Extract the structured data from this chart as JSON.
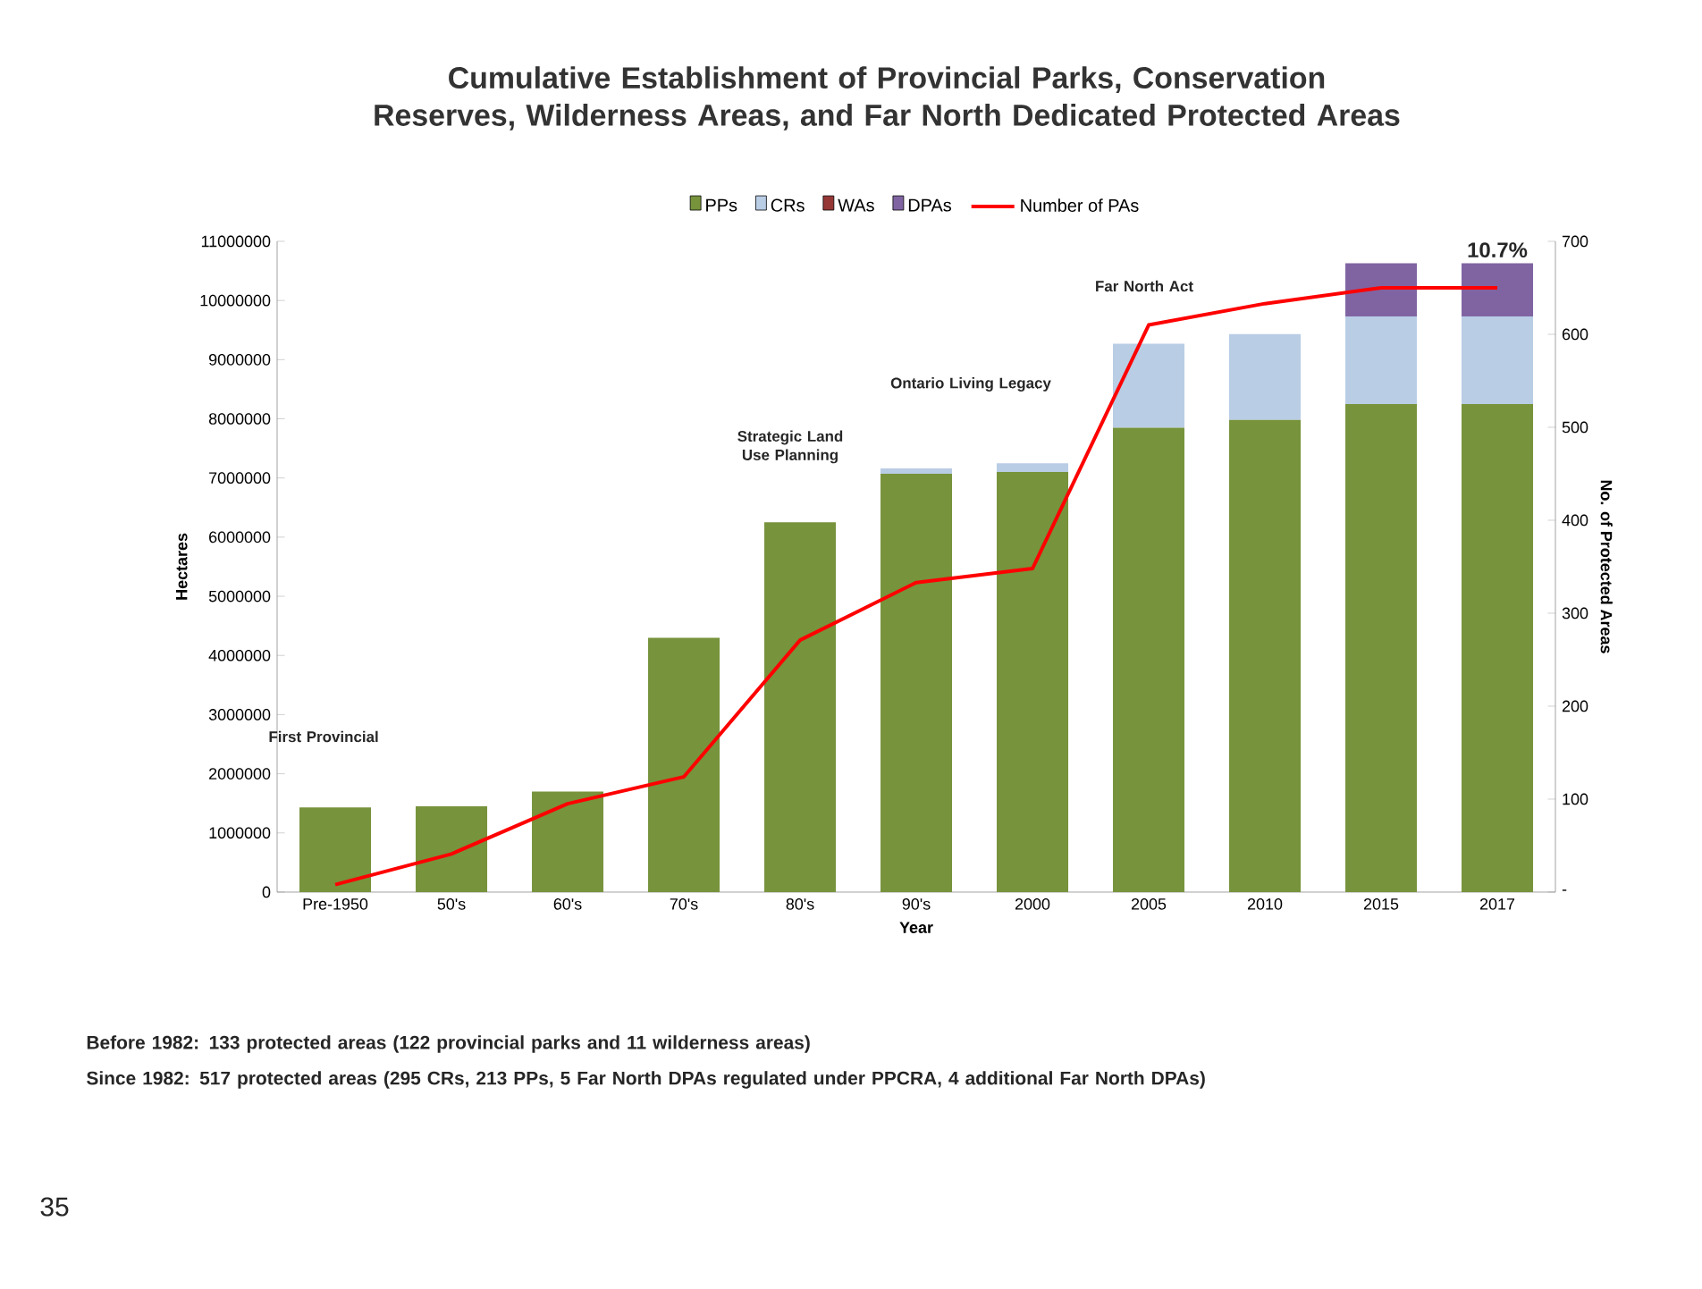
{
  "chart_data": {
    "type": "bar",
    "stacked": true,
    "title": "Cumulative Establishment of Provincial Parks, Conservation Reserves, Wilderness Areas, and Far North Dedicated Protected Areas",
    "xlabel": "Year",
    "ylabel": "Hectares",
    "y2label": "No. of Protected Areas",
    "categories": [
      "Pre-1950",
      "50's",
      "60's",
      "70's",
      "80's",
      "90's",
      "2000",
      "2005",
      "2010",
      "2015",
      "2017"
    ],
    "series": [
      {
        "name": "PPs",
        "color": "#77933c",
        "values": [
          1430000,
          1450000,
          1700000,
          4300000,
          6250000,
          7070000,
          7100000,
          7850000,
          7980000,
          8250000,
          8250000
        ]
      },
      {
        "name": "CRs",
        "color": "#b9cde5",
        "values": [
          0,
          0,
          0,
          0,
          0,
          90000,
          150000,
          1420000,
          1450000,
          1480000,
          1480000
        ]
      },
      {
        "name": "WAs",
        "color": "#953735",
        "values": [
          0,
          0,
          0,
          0,
          0,
          0,
          0,
          0,
          0,
          0,
          0
        ]
      },
      {
        "name": "DPAs",
        "color": "#8064a2",
        "values": [
          0,
          0,
          0,
          0,
          0,
          0,
          0,
          0,
          0,
          900000,
          900000
        ]
      },
      {
        "name": "Number of PAs",
        "type": "line",
        "axis": "y2",
        "color": "#ff0000",
        "values": [
          8,
          41,
          95,
          124,
          271,
          333,
          348,
          610,
          633,
          650,
          650
        ]
      }
    ],
    "ylim": [
      0,
      11000000
    ],
    "yticks": [
      0,
      1000000,
      2000000,
      3000000,
      4000000,
      5000000,
      6000000,
      7000000,
      8000000,
      9000000,
      10000000,
      11000000
    ],
    "y2lim": [
      0,
      700
    ],
    "y2ticks": [
      {
        "value": 0,
        "label": "-"
      },
      100,
      200,
      300,
      400,
      500,
      600,
      700
    ],
    "legend": "top",
    "marker": "none",
    "annotations": [
      "First Provincial",
      "Strategic Land Use Planning",
      "Ontario Living Legacy",
      "Far North Act",
      {
        "text": "10.7%",
        "x": "2017",
        "y": 10630000
      },
      "Before 1982: 133 protected areas (122 provincial parks and 11 wilderness areas)",
      "Since 1982: 517 protected areas (295 CRs, 213 PPs, 5 Far North DPAs regulated under PPCRA, 4 additional Far North DPAs)",
      "35"
    ]
  }
}
